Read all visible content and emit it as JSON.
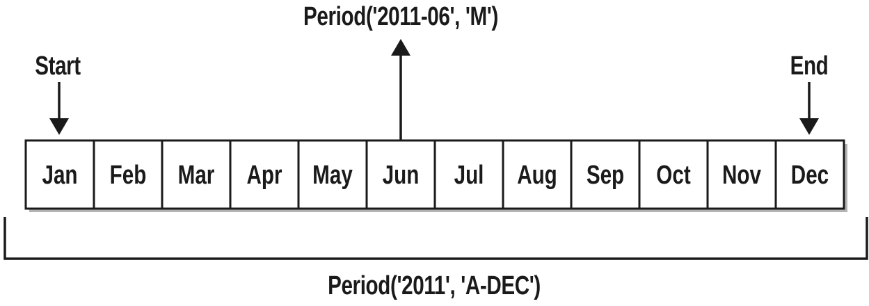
{
  "period_month_label": "Period('2011-06', 'M')",
  "period_year_label": "Period('2011', 'A-DEC')",
  "start_label": "Start",
  "end_label": "End",
  "months": [
    "Jan",
    "Feb",
    "Mar",
    "Apr",
    "May",
    "Jun",
    "Jul",
    "Aug",
    "Sep",
    "Oct",
    "Nov",
    "Dec"
  ],
  "highlighted_month": "Jun",
  "colors": {
    "stroke": "#1a1a1a",
    "shadow": "#b3b3b3",
    "box_fill": "#ffffff"
  }
}
